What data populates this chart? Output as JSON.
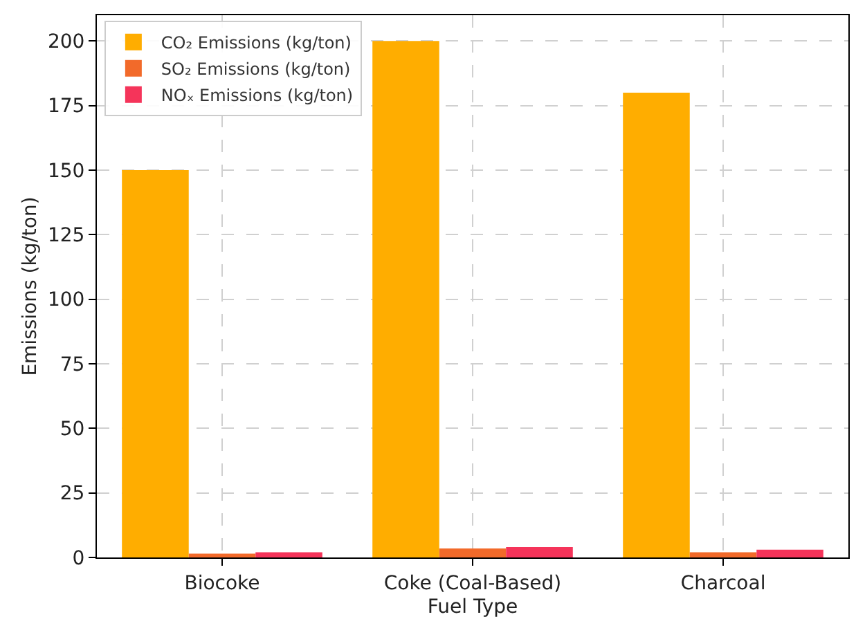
{
  "chart_data": {
    "type": "bar",
    "xlabel": "Fuel Type",
    "ylabel": "Emissions (kg/ton)",
    "categories": [
      "Biocoke",
      "Coke (Coal-Based)",
      "Charcoal"
    ],
    "series": [
      {
        "name": "CO₂ Emissions (kg/ton)",
        "color": "#ffad00",
        "values": [
          150,
          200,
          180
        ]
      },
      {
        "name": "SO₂ Emissions (kg/ton)",
        "color": "#f26a2a",
        "values": [
          1.5,
          3.5,
          2
        ]
      },
      {
        "name": "NOₓ Emissions (kg/ton)",
        "color": "#f5345a",
        "values": [
          2,
          4,
          3
        ]
      }
    ],
    "ylim": [
      0,
      210
    ],
    "yticks": [
      0,
      25,
      50,
      75,
      100,
      125,
      150,
      175,
      200
    ],
    "grid": true,
    "legend": "top left"
  }
}
